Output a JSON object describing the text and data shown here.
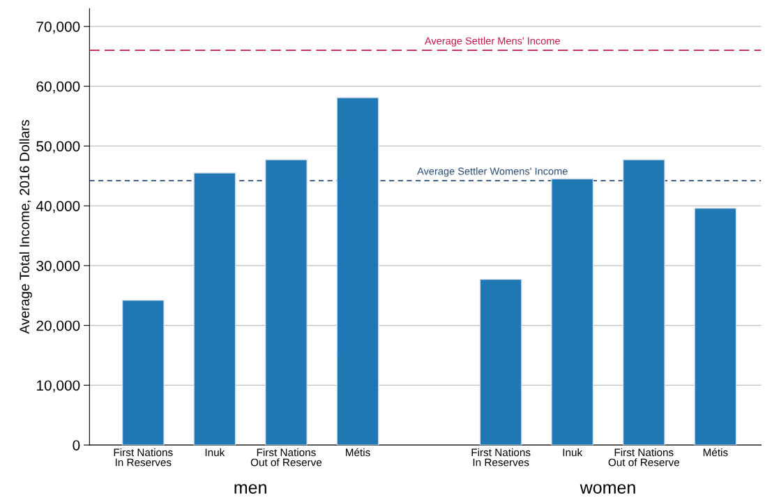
{
  "chart_data": {
    "type": "bar",
    "ylabel": "Average Total Income, 2016 Dollars",
    "categories": [
      "First Nations\nIn Reserves",
      "Inuk",
      "First Nations\nOut of Reserve",
      "Métis",
      null,
      "First Nations\nIn Reserves",
      "Inuk",
      "First Nations\nOut of Reserve",
      "Métis"
    ],
    "values": [
      24200,
      45500,
      47700,
      58100,
      null,
      27700,
      44500,
      47700,
      39600
    ],
    "color": "#1f77b4",
    "ylim": [
      0,
      73000
    ],
    "yticks": [
      0,
      {
        "value": 10000,
        "label": "10,000"
      },
      {
        "value": 20000,
        "label": "20,000"
      },
      {
        "value": 30000,
        "label": "30,000"
      },
      {
        "value": 40000,
        "label": "40,000"
      },
      {
        "value": 50000,
        "label": "50,000"
      },
      {
        "value": 60000,
        "label": "60,000"
      },
      {
        "value": 70000,
        "label": "70,000"
      }
    ],
    "grid": "y",
    "ref_lines": [
      {
        "axis": "y",
        "value": 66000,
        "label": "Average Settler Mens' Income",
        "color": "#c8184a",
        "line_style": "dashed"
      },
      {
        "axis": "y",
        "value": 44200,
        "label": "Average Settler Womens' Income",
        "color": "#2a4d76",
        "line_style": "dotted"
      }
    ],
    "annotations": [
      "men",
      "women"
    ]
  }
}
